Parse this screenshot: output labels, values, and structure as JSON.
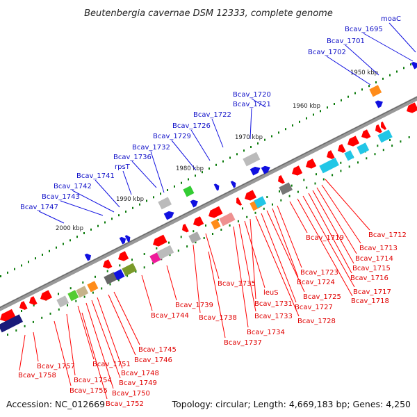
{
  "title": "Beutenbergia cavernae DSM 12333, complete genome",
  "footer": {
    "accession": "Accession: NC_012669",
    "summary": "Topology: circular; Length: 4,669,183 bp; Genes: 4,250"
  },
  "scale_labels": [
    "1950 kbp",
    "1960 kbp",
    "1970 kbp",
    "1980 kbp",
    "1990 kbp",
    "2000 kbp"
  ],
  "colors": {
    "forward": "#1010e0",
    "reverse": "#ff0000",
    "backbone": "#888888"
  },
  "forward_labels": [
    "moaC",
    "Bcav_1695",
    "Bcav_1701",
    "Bcav_1702",
    "Bcav_1720",
    "Bcav_1721",
    "Bcav_1722",
    "Bcav_1726",
    "Bcav_1729",
    "Bcav_1732",
    "Bcav_1736",
    "rpsT",
    "Bcav_1741",
    "Bcav_1742",
    "Bcav_1743",
    "Bcav_1747"
  ],
  "reverse_labels": [
    "Bcav_1712",
    "Bcav_1713",
    "Bcav_1714",
    "Bcav_1715",
    "Bcav_1716",
    "Bcav_1717",
    "Bcav_1718",
    "Bcav_1719",
    "Bcav_1723",
    "Bcav_1724",
    "Bcav_1725",
    "Bcav_1727",
    "Bcav_1728",
    "Bcav_1731",
    "leuS",
    "Bcav_1733",
    "Bcav_1734",
    "Bcav_1735",
    "Bcav_1737",
    "Bcav_1738",
    "Bcav_1739",
    "Bcav_1744",
    "Bcav_1745",
    "Bcav_1746",
    "Bcav_1748",
    "Bcav_1749",
    "Bcav_1750",
    "Bcav_1751",
    "Bcav_1752",
    "Bcav_1754",
    "Bcav_1755",
    "Bcav_1757",
    "Bcav_1758"
  ]
}
